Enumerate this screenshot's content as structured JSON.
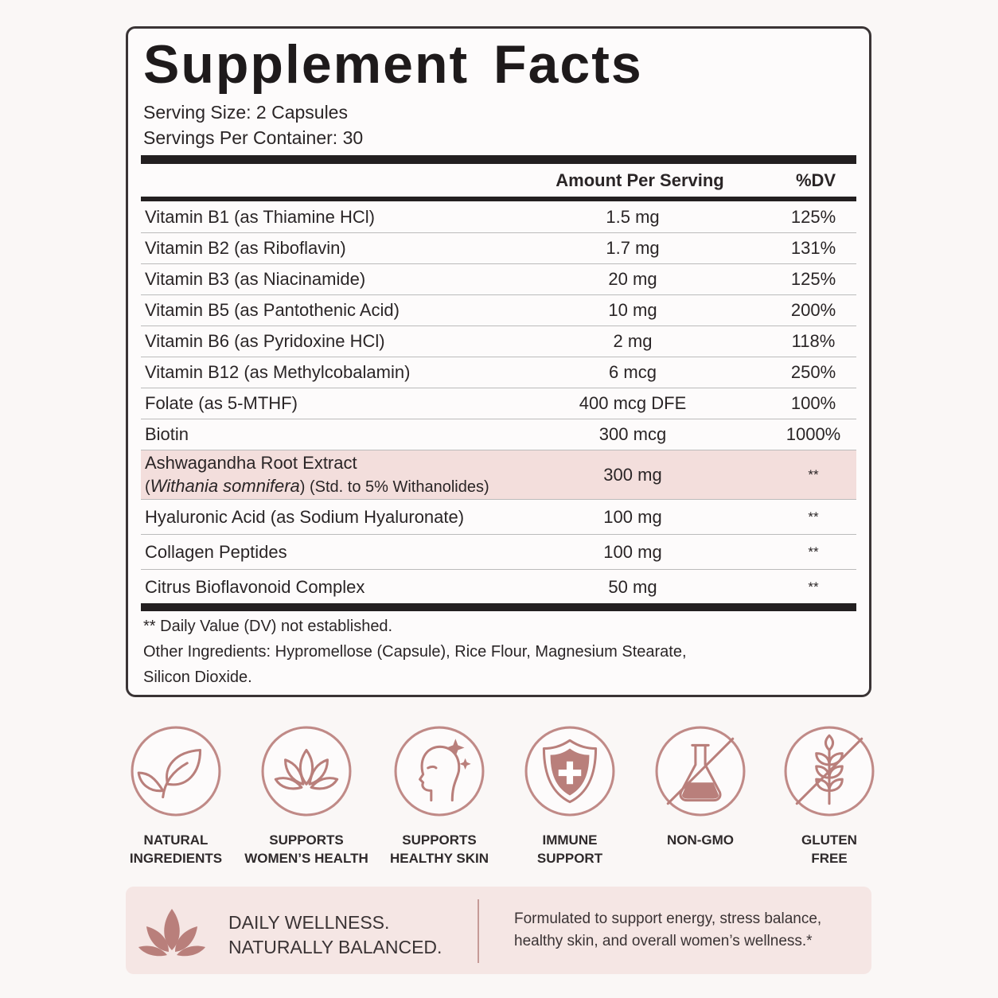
{
  "label": {
    "title": "Supplement Facts",
    "serving_size": "Serving Size: 2 Capsules",
    "servings_per_container": "Servings Per Container: 30",
    "headers": [
      "Amount Per Serving",
      "%DV"
    ],
    "rows": [
      {
        "name": "Vitamin B1 (as Thiamine HCl)",
        "amount": "1.5 mg",
        "dv": "125%"
      },
      {
        "name": "Vitamin B2 (as Riboflavin)",
        "amount": "1.7 mg",
        "dv": "131%"
      },
      {
        "name": "Vitamin B3 (as Niacinamide)",
        "amount": "20 mg",
        "dv": "125%"
      },
      {
        "name": "Vitamin B5 (as Pantothenic Acid)",
        "amount": "10 mg",
        "dv": "200%"
      },
      {
        "name": "Vitamin B6 (as Pyridoxine HCl)",
        "amount": "2 mg",
        "dv": "118%"
      },
      {
        "name": "Vitamin B12 (as Methylcobalamin)",
        "amount": "6 mcg",
        "dv": "250%"
      },
      {
        "name": "Folate (as 5-MTHF)",
        "amount": "400 mcg DFE",
        "dv": "100%"
      },
      {
        "name": "Biotin",
        "amount": "300 mcg",
        "dv": "1000%"
      },
      {
        "name": "Ashwagandha Root Extract",
        "detail": [
          "(",
          "Withania somnifera",
          ") (Std. to 5% Withanolides)"
        ],
        "amount": "300 mg",
        "dv": "**",
        "highlight": true
      },
      {
        "name": "Hyaluronic Acid (as Sodium Hyaluronate)",
        "amount": "100 mg",
        "dv": "**"
      },
      {
        "name": "Collagen Peptides",
        "amount": "100 mg",
        "dv": "**"
      },
      {
        "name": "Citrus Bioflavonoid Complex",
        "amount": "50 mg",
        "dv": "**"
      }
    ],
    "footnote": "** Daily Value (DV) not established.",
    "other_ingredients": [
      "Other Ingredients: Hypromellose (Capsule), Rice Flour, Magnesium Stearate,",
      "Silicon Dioxide."
    ]
  },
  "badges": [
    [
      "NATURAL",
      "INGREDIENTS"
    ],
    [
      "SUPPORTS",
      "WOMEN’S HEALTH"
    ],
    [
      "SUPPORTS",
      "HEALTHY SKIN"
    ],
    [
      "IMMUNE",
      "SUPPORT"
    ],
    [
      "NON-GMO"
    ],
    [
      "GLUTEN",
      "FREE"
    ]
  ],
  "banner": {
    "headline": [
      "DAILY WELLNESS.",
      "NATURALLY BALANCED."
    ],
    "description": [
      "Formulated to support energy, stress balance,",
      "healthy skin, and overall women’s wellness.*"
    ]
  }
}
